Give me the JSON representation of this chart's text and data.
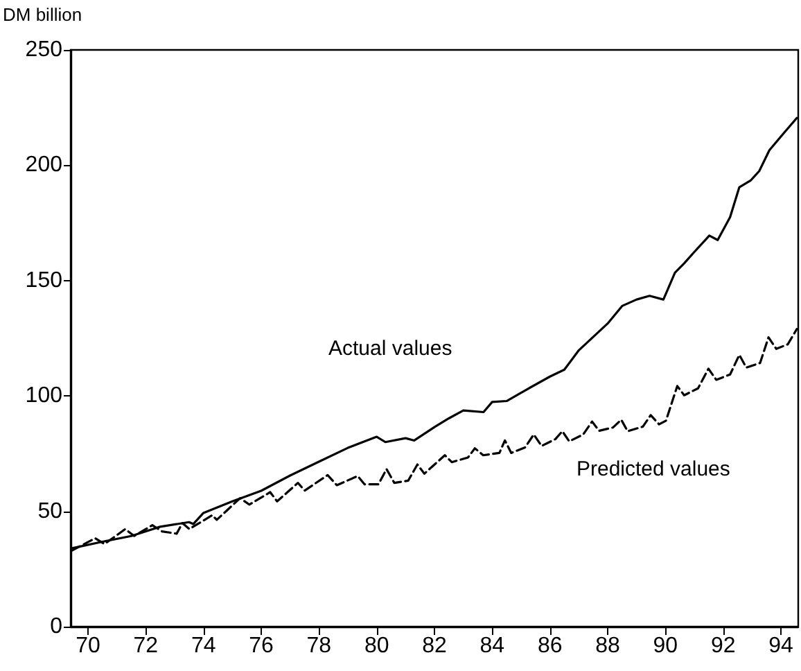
{
  "chart_data": {
    "type": "line",
    "ylabel": "DM billion",
    "xlim": [
      1969.4,
      1994.6
    ],
    "ylim": [
      0,
      250
    ],
    "xticks": [
      {
        "value": 1970,
        "label": "70"
      },
      {
        "value": 1972,
        "label": "72"
      },
      {
        "value": 1974,
        "label": "74"
      },
      {
        "value": 1976,
        "label": "76"
      },
      {
        "value": 1978,
        "label": "78"
      },
      {
        "value": 1980,
        "label": "80"
      },
      {
        "value": 1982,
        "label": "82"
      },
      {
        "value": 1984,
        "label": "84"
      },
      {
        "value": 1986,
        "label": "86"
      },
      {
        "value": 1988,
        "label": "88"
      },
      {
        "value": 1990,
        "label": "90"
      },
      {
        "value": 1992,
        "label": "92"
      },
      {
        "value": 1994,
        "label": "94"
      }
    ],
    "yticks": [
      0,
      50,
      100,
      150,
      200,
      250
    ],
    "grid": false,
    "legend": false,
    "marker": "none",
    "series": [
      {
        "name": "Actual values",
        "color": "#000000",
        "line_style": "solid",
        "x": [
          1969.45,
          1970.5,
          1971.5,
          1972.5,
          1973.5,
          1973.65,
          1974,
          1975,
          1976,
          1977,
          1978,
          1979,
          1980,
          1980.3,
          1981,
          1981.3,
          1982,
          1982.5,
          1983,
          1983.7,
          1984,
          1984.5,
          1985,
          1986,
          1986.5,
          1987,
          1988,
          1988.5,
          1989,
          1989.45,
          1989.93,
          1990.33,
          1990.65,
          1991,
          1991.52,
          1991.81,
          1992.24,
          1992.56,
          1992.96,
          1993.25,
          1993.6,
          1994.07,
          1994.55
        ],
        "values": [
          34,
          36.8,
          39.3,
          43.3,
          45.3,
          44.5,
          49.3,
          54.3,
          58.9,
          65.5,
          71.5,
          77.5,
          82.3,
          80,
          81.7,
          80.7,
          86.5,
          90.3,
          93.7,
          93,
          97.4,
          97.8,
          101.4,
          108.4,
          111.4,
          119.8,
          131.4,
          139,
          141.8,
          143.4,
          141.8,
          153.4,
          157.5,
          162.4,
          169.5,
          167.6,
          177.5,
          190.5,
          193.5,
          197.5,
          206.5,
          213.5,
          220.5
        ]
      },
      {
        "name": "Predicted values",
        "color": "#000000",
        "line_style": "dashed",
        "x": [
          1969.45,
          1970.25,
          1970.57,
          1971.29,
          1971.6,
          1972.23,
          1972.56,
          1973.07,
          1973.27,
          1973.51,
          1974.3,
          1974.46,
          1975.27,
          1975.59,
          1976.31,
          1976.55,
          1977.27,
          1977.51,
          1978.3,
          1978.62,
          1979.34,
          1979.58,
          1980.06,
          1980.34,
          1980.61,
          1981.09,
          1981.41,
          1981.65,
          1982.36,
          1982.6,
          1983.16,
          1983.4,
          1983.69,
          1984.25,
          1984.44,
          1984.66,
          1985.14,
          1985.44,
          1985.71,
          1986.19,
          1986.43,
          1986.67,
          1987.15,
          1987.46,
          1987.7,
          1988.18,
          1988.47,
          1988.69,
          1989.22,
          1989.49,
          1989.78,
          1990.02,
          1990.41,
          1990.65,
          1991.13,
          1991.49,
          1991.76,
          1992.24,
          1992.56,
          1992.8,
          1993.28,
          1993.57,
          1993.84,
          1994.24,
          1994.55
        ],
        "values": [
          33,
          38.3,
          35.8,
          42.3,
          39.3,
          44,
          41.3,
          40.3,
          44.9,
          42.3,
          48.3,
          46.3,
          55.7,
          52.9,
          58.3,
          54.3,
          62.3,
          59,
          65.7,
          61.3,
          65.3,
          61.7,
          61.7,
          68.3,
          62.3,
          63.3,
          70.3,
          66.3,
          74.3,
          71.3,
          73.3,
          77.3,
          74.3,
          75.3,
          80.7,
          75.3,
          77.7,
          83.3,
          78.3,
          81.3,
          84.7,
          80.3,
          83.3,
          88.9,
          84.9,
          86.3,
          89.7,
          84.7,
          86.7,
          91.7,
          87.7,
          89.3,
          104.3,
          100.3,
          103.3,
          111.8,
          107,
          109.3,
          117.8,
          112.3,
          114.3,
          125.4,
          120.4,
          122.4,
          129
        ]
      }
    ]
  }
}
